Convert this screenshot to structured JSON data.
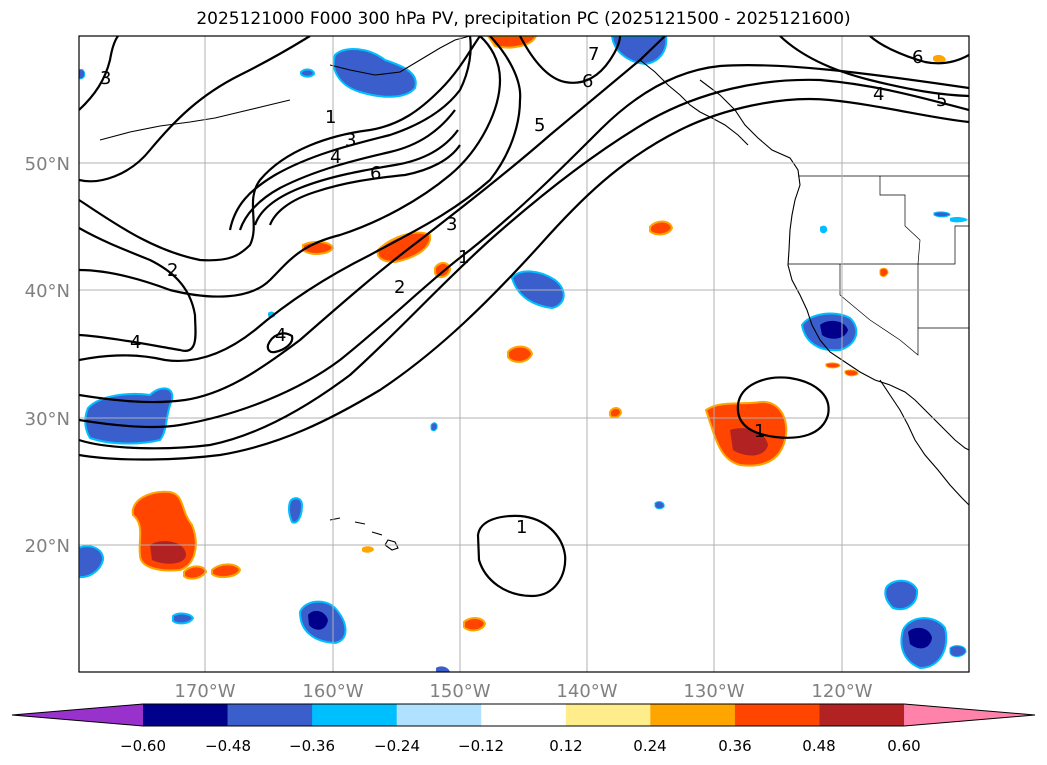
{
  "title": "2025121000 F000 300 hPa PV, precipitation PC (2025121500 - 2025121600)",
  "map": {
    "lat_labels": [
      "50°N",
      "40°N",
      "30°N",
      "20°N"
    ],
    "lon_labels": [
      "170°W",
      "160°W",
      "150°W",
      "140°W",
      "130°W",
      "120°W"
    ],
    "pv_contour_labels": [
      "3",
      "1",
      "3",
      "4",
      "6",
      "2",
      "4",
      "4",
      "2",
      "3",
      "1",
      "5",
      "6",
      "7",
      "4",
      "5",
      "6",
      "1",
      "1"
    ]
  },
  "colorbar": {
    "tick_labels": [
      "−0.60",
      "−0.48",
      "−0.36",
      "−0.24",
      "−0.12",
      "0.12",
      "0.24",
      "0.36",
      "0.48",
      "0.60"
    ],
    "colors": [
      "#9932cc",
      "#00008b",
      "#3a5fcd",
      "#00bfff",
      "#b0e2ff",
      "#ffffff",
      "#ffec8b",
      "#ffa500",
      "#ff4500",
      "#b22222",
      "#ff82ab"
    ]
  }
}
